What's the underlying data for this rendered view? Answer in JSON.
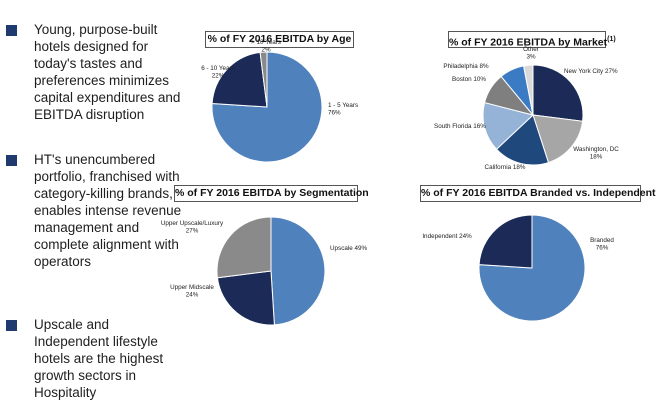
{
  "bullets": [
    "Young, purpose-built hotels designed for today's tastes and preferences minimizes capital expenditures and EBITDA disruption",
    "HT's unencumbered portfolio, franchised with category-killing brands, enables intense revenue management and complete alignment with operators",
    "Upscale and Independent lifestyle hotels are the highest growth sectors in Hospitality"
  ],
  "chart_data": [
    {
      "type": "pie",
      "title": "% of FY 2016 EBITDA by Age",
      "slices": [
        {
          "label": "1 - 5 Years",
          "value": 76,
          "value_text": "76%",
          "color": "#4f81bd"
        },
        {
          "label": "6 - 10 Years",
          "value": 22,
          "value_text": "22%",
          "color": "#1b2a57"
        },
        {
          "label": "> 10 Years",
          "value": 2,
          "value_text": "2%",
          "color": "#8a8a8a"
        }
      ]
    },
    {
      "type": "pie",
      "title": "% of FY 2016 EBITDA by Market",
      "title_superscript": "(1)",
      "slices": [
        {
          "label": "New York City",
          "value": 27,
          "value_text": "27%",
          "color": "#1b2a57"
        },
        {
          "label": "Washington, DC",
          "value": 18,
          "value_text": "18%",
          "color": "#a6a6a6"
        },
        {
          "label": "California",
          "value": 18,
          "value_text": "18%",
          "color": "#1f497d"
        },
        {
          "label": "South Florida",
          "value": 16,
          "value_text": "16%",
          "color": "#95b3d7"
        },
        {
          "label": "Boston",
          "value": 10,
          "value_text": "10%",
          "color": "#7f7f7f"
        },
        {
          "label": "Philadelphia",
          "value": 8,
          "value_text": "8%",
          "color": "#3b7bc4"
        },
        {
          "label": "Other",
          "value": 3,
          "value_text": "3%",
          "color": "#d9d9d9"
        }
      ]
    },
    {
      "type": "pie",
      "title": "% of FY 2016 EBITDA by Segmentation",
      "slices": [
        {
          "label": "Upscale",
          "value": 49,
          "value_text": "49%",
          "color": "#4f81bd"
        },
        {
          "label": "Upper Midscale",
          "value": 24,
          "value_text": "24%",
          "color": "#1b2a57"
        },
        {
          "label": "Upper Upscale/Luxury",
          "value": 27,
          "value_text": "27%",
          "color": "#8a8a8a"
        }
      ]
    },
    {
      "type": "pie",
      "title": "% of FY 2016 EBITDA Branded vs. Independent",
      "slices": [
        {
          "label": "Branded",
          "value": 76,
          "value_text": "76%",
          "color": "#4f81bd"
        },
        {
          "label": "Independent",
          "value": 24,
          "value_text": "24%",
          "color": "#1b2a57"
        }
      ]
    }
  ]
}
